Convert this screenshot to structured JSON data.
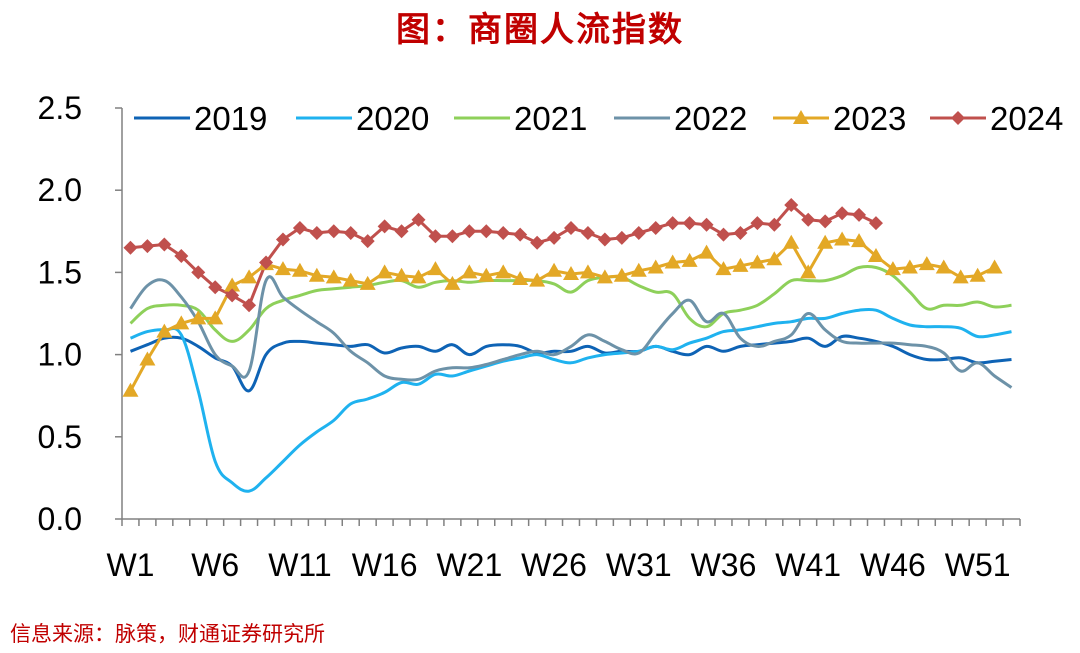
{
  "colors": {
    "title": "#c00000",
    "source": "#c00000",
    "axis": "#808080",
    "series": {
      "2019": "#0e63b5",
      "2020": "#1fb2ef",
      "2021": "#8ed05a",
      "2022": "#6d92a8",
      "2023": "#e3a826",
      "2024": "#c0504d"
    }
  },
  "chart_data": {
    "type": "line",
    "title": "图：商圈人流指数",
    "source": "信息来源：脉策，财通证券研究所",
    "xlabel": "",
    "ylabel": "",
    "ylim": [
      0,
      2.5
    ],
    "yticks": [
      "0.0",
      "0.5",
      "1.0",
      "1.5",
      "2.0",
      "2.5"
    ],
    "x": [
      "W1",
      "W2",
      "W3",
      "W4",
      "W5",
      "W6",
      "W7",
      "W8",
      "W9",
      "W10",
      "W11",
      "W12",
      "W13",
      "W14",
      "W15",
      "W16",
      "W17",
      "W18",
      "W19",
      "W20",
      "W21",
      "W22",
      "W23",
      "W24",
      "W25",
      "W26",
      "W27",
      "W28",
      "W29",
      "W30",
      "W31",
      "W32",
      "W33",
      "W34",
      "W35",
      "W36",
      "W37",
      "W38",
      "W39",
      "W40",
      "W41",
      "W42",
      "W43",
      "W44",
      "W45",
      "W46",
      "W47",
      "W48",
      "W49",
      "W50",
      "W51",
      "W52",
      "W53"
    ],
    "xtick_labels": [
      "W1",
      "W6",
      "W11",
      "W16",
      "W21",
      "W26",
      "W31",
      "W36",
      "W41",
      "W46",
      "W51"
    ],
    "grid": false,
    "legend_position": "top",
    "series": [
      {
        "name": "2019",
        "marker": "none",
        "values": [
          1.02,
          1.06,
          1.1,
          1.1,
          1.05,
          0.98,
          0.93,
          0.78,
          1.0,
          1.07,
          1.08,
          1.07,
          1.06,
          1.05,
          1.06,
          1.01,
          1.04,
          1.05,
          1.02,
          1.06,
          1.0,
          1.05,
          1.06,
          1.05,
          1.01,
          1.02,
          1.02,
          1.05,
          1.01,
          1.02,
          1.02,
          1.05,
          1.02,
          1.0,
          1.05,
          1.02,
          1.05,
          1.06,
          1.07,
          1.08,
          1.1,
          1.05,
          1.11,
          1.1,
          1.08,
          1.05,
          1.0,
          0.97,
          0.97,
          0.98,
          0.95,
          0.96,
          0.97
        ]
      },
      {
        "name": "2020",
        "marker": "none",
        "values": [
          1.1,
          1.14,
          1.15,
          1.12,
          0.78,
          0.35,
          0.22,
          0.17,
          0.25,
          0.35,
          0.45,
          0.53,
          0.6,
          0.7,
          0.73,
          0.77,
          0.83,
          0.82,
          0.88,
          0.87,
          0.9,
          0.93,
          0.96,
          0.98,
          1.0,
          0.97,
          0.95,
          0.98,
          1.0,
          1.01,
          1.02,
          1.05,
          1.03,
          1.07,
          1.1,
          1.14,
          1.15,
          1.17,
          1.19,
          1.2,
          1.22,
          1.22,
          1.25,
          1.27,
          1.27,
          1.22,
          1.18,
          1.17,
          1.17,
          1.16,
          1.11,
          1.12,
          1.14
        ]
      },
      {
        "name": "2021",
        "marker": "none",
        "values": [
          1.19,
          1.28,
          1.3,
          1.3,
          1.27,
          1.15,
          1.08,
          1.15,
          1.28,
          1.33,
          1.36,
          1.39,
          1.4,
          1.41,
          1.42,
          1.44,
          1.45,
          1.41,
          1.44,
          1.45,
          1.44,
          1.45,
          1.45,
          1.45,
          1.45,
          1.43,
          1.38,
          1.45,
          1.47,
          1.47,
          1.42,
          1.38,
          1.37,
          1.22,
          1.17,
          1.25,
          1.27,
          1.3,
          1.37,
          1.45,
          1.45,
          1.45,
          1.48,
          1.53,
          1.53,
          1.48,
          1.38,
          1.28,
          1.3,
          1.3,
          1.32,
          1.29,
          1.3
        ]
      },
      {
        "name": "2022",
        "marker": "none",
        "values": [
          1.28,
          1.42,
          1.45,
          1.35,
          1.2,
          1.0,
          0.93,
          0.9,
          1.45,
          1.35,
          1.27,
          1.2,
          1.13,
          1.02,
          0.95,
          0.87,
          0.85,
          0.85,
          0.9,
          0.92,
          0.92,
          0.94,
          0.97,
          1.0,
          1.02,
          1.0,
          1.05,
          1.12,
          1.08,
          1.03,
          1.01,
          1.13,
          1.25,
          1.33,
          1.2,
          1.25,
          1.1,
          1.05,
          1.08,
          1.12,
          1.25,
          1.15,
          1.08,
          1.07,
          1.07,
          1.07,
          1.06,
          1.05,
          1.01,
          0.9,
          0.95,
          0.87,
          0.8
        ]
      },
      {
        "name": "2023",
        "marker": "triangle",
        "values": [
          0.78,
          0.97,
          1.14,
          1.19,
          1.22,
          1.22,
          1.42,
          1.47,
          1.55,
          1.52,
          1.51,
          1.48,
          1.47,
          1.45,
          1.43,
          1.5,
          1.48,
          1.47,
          1.52,
          1.43,
          1.5,
          1.48,
          1.5,
          1.46,
          1.45,
          1.51,
          1.49,
          1.5,
          1.47,
          1.48,
          1.51,
          1.53,
          1.56,
          1.57,
          1.62,
          1.52,
          1.54,
          1.56,
          1.58,
          1.68,
          1.5,
          1.68,
          1.7,
          1.69,
          1.6,
          1.52,
          1.53,
          1.55,
          1.53,
          1.47,
          1.48,
          1.53,
          null
        ]
      },
      {
        "name": "2024",
        "marker": "diamond",
        "values": [
          1.65,
          1.66,
          1.67,
          1.6,
          1.5,
          1.41,
          1.36,
          1.3,
          1.56,
          1.7,
          1.77,
          1.74,
          1.75,
          1.74,
          1.69,
          1.78,
          1.75,
          1.82,
          1.72,
          1.72,
          1.75,
          1.75,
          1.74,
          1.73,
          1.68,
          1.71,
          1.77,
          1.74,
          1.7,
          1.71,
          1.74,
          1.77,
          1.8,
          1.8,
          1.79,
          1.73,
          1.74,
          1.8,
          1.79,
          1.91,
          1.82,
          1.81,
          1.86,
          1.85,
          1.8,
          null,
          null,
          null,
          null,
          null,
          null,
          null,
          null
        ]
      }
    ]
  }
}
